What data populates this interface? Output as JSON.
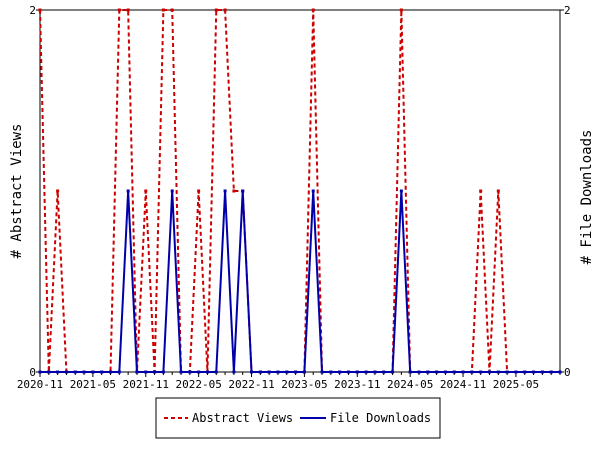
{
  "chart_data": {
    "type": "line",
    "x": [
      "2020-11",
      "2020-12",
      "2021-01",
      "2021-02",
      "2021-03",
      "2021-04",
      "2021-05",
      "2021-06",
      "2021-07",
      "2021-08",
      "2021-09",
      "2021-10",
      "2021-11",
      "2021-12",
      "2022-01",
      "2022-02",
      "2022-03",
      "2022-04",
      "2022-05",
      "2022-06",
      "2022-07",
      "2022-08",
      "2022-09",
      "2022-10",
      "2022-11",
      "2022-12",
      "2023-01",
      "2023-02",
      "2023-03",
      "2023-04",
      "2023-05",
      "2023-06",
      "2023-07",
      "2023-08",
      "2023-09",
      "2023-10",
      "2023-11",
      "2023-12",
      "2024-01",
      "2024-02",
      "2024-03",
      "2024-04",
      "2024-05",
      "2024-06",
      "2024-07",
      "2024-08",
      "2024-09",
      "2024-10",
      "2024-11",
      "2024-12",
      "2025-01",
      "2025-02",
      "2025-03",
      "2025-04",
      "2025-05",
      "2025-06",
      "2025-07",
      "2025-08",
      "2025-09",
      "2025-10"
    ],
    "series": [
      {
        "name": "Abstract Views",
        "color": "#cc0000",
        "style": "dashed",
        "axis": "left",
        "values": [
          2,
          0,
          1,
          0,
          0,
          0,
          0,
          0,
          0,
          2,
          2,
          0,
          1,
          0,
          2,
          2,
          0,
          0,
          1,
          0,
          2,
          2,
          1,
          1,
          0,
          0,
          0,
          0,
          0,
          0,
          0,
          2,
          0,
          0,
          0,
          0,
          0,
          0,
          0,
          0,
          0,
          2,
          0,
          0,
          0,
          0,
          0,
          0,
          0,
          0,
          1,
          0,
          1,
          0,
          0,
          0,
          0,
          0,
          0,
          0
        ]
      },
      {
        "name": "File Downloads",
        "color": "#0000aa",
        "style": "solid",
        "axis": "right",
        "values": [
          0,
          0,
          0,
          0,
          0,
          0,
          0,
          0,
          0,
          0,
          1,
          0,
          0,
          0,
          0,
          1,
          0,
          0,
          0,
          0,
          0,
          1,
          0,
          1,
          0,
          0,
          0,
          0,
          0,
          0,
          0,
          1,
          0,
          0,
          0,
          0,
          0,
          0,
          0,
          0,
          0,
          1,
          0,
          0,
          0,
          0,
          0,
          0,
          0,
          0,
          0,
          0,
          0,
          0,
          0,
          0,
          0,
          0,
          0,
          0
        ]
      }
    ],
    "xticks": [
      "2020-11",
      "2021-05",
      "2021-11",
      "2022-05",
      "2022-11",
      "2023-05",
      "2023-11",
      "2024-05",
      "2024-11",
      "2025-05"
    ],
    "ylabel_left": "# Abstract Views",
    "ylabel_right": "# File Downloads",
    "ylim_left": [
      0,
      2
    ],
    "ylim_right": [
      0,
      2
    ],
    "yticks_left": [
      "0",
      "2"
    ],
    "yticks_right": [
      "0",
      "2"
    ],
    "legend_placement": "bottom",
    "grid": false
  }
}
